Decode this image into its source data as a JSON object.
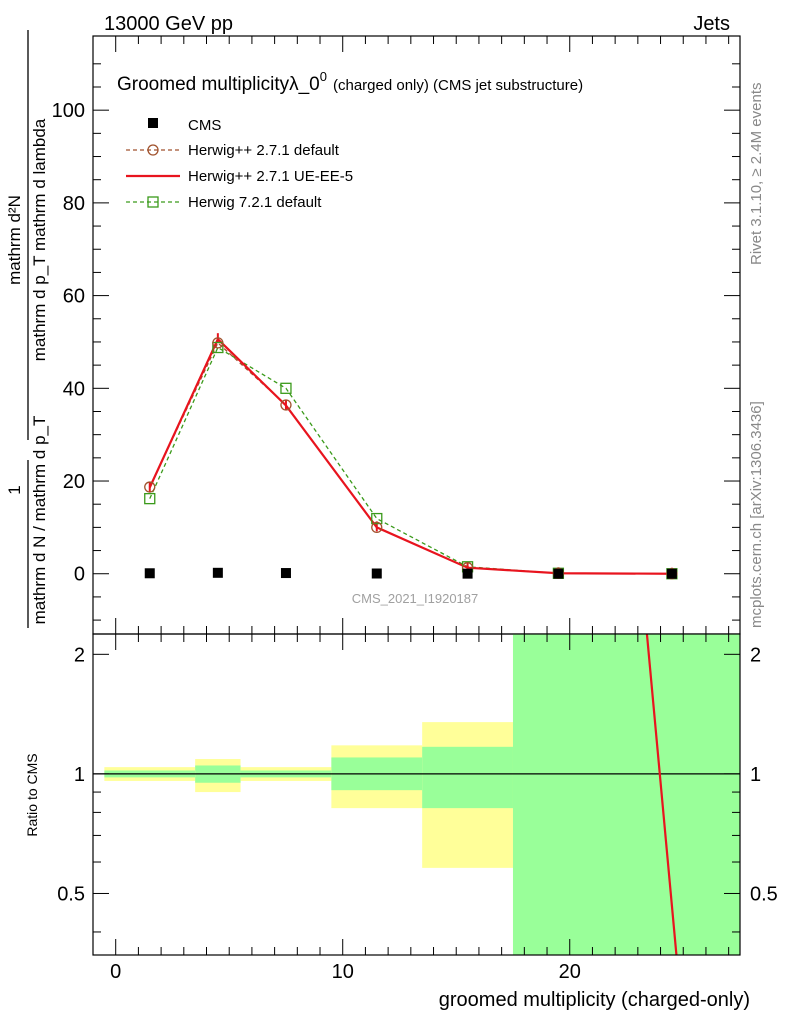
{
  "header": {
    "left": "13000 GeV pp",
    "right": "Jets"
  },
  "side_text": {
    "rivet": "Rivet 3.1.10, ≥ 2.4M events",
    "mcplots": "mcplots.cern.ch [arXiv:1306.3436]"
  },
  "chart_data": [
    {
      "type": "line",
      "title_main": "Groomed multiplicityλ_0",
      "title_sup": "0",
      "title_tail": "(charged only) (CMS jet substructure)",
      "watermark": "CMS_2021_I1920187",
      "ylabel_line1": "mathrm d²N",
      "ylabel_line2": "mathrm d p_T mathrm d lambda",
      "ylabel_prefix": "1",
      "ylabel_line3": "mathrm d N / mathrm d p_T",
      "xlim": [
        -1,
        27.5
      ],
      "ylim": [
        -13,
        116
      ],
      "yticks": [
        0,
        20,
        40,
        60,
        80,
        100
      ],
      "legend": [
        "CMS",
        "Herwig++ 2.7.1 default",
        "Herwig++ 2.7.1 UE-EE-5",
        "Herwig 7.2.1 default"
      ],
      "series": [
        {
          "name": "CMS",
          "x": [
            1.5,
            4.5,
            7.5,
            11.5,
            15.5,
            19.5,
            24.5
          ],
          "values": [
            0.1,
            0.2,
            0.15,
            0.05,
            0.02,
            0.01,
            0.0
          ],
          "color": "#000000"
        },
        {
          "name": "Herwig++ 2.7.1 default",
          "x": [
            1.5,
            4.5,
            7.5,
            11.5,
            15.5,
            19.5,
            24.5
          ],
          "values": [
            18.7,
            49.8,
            36.4,
            10.0,
            1.3,
            0.1,
            0.0
          ],
          "color": "#a0522d"
        },
        {
          "name": "Herwig++ 2.7.1 UE-EE-5",
          "x": [
            1.5,
            4.5,
            7.5,
            11.5,
            15.5,
            19.5,
            24.5
          ],
          "values": [
            18.6,
            50.6,
            36.3,
            10.0,
            1.3,
            0.1,
            0.0
          ],
          "color": "#e8141e"
        },
        {
          "name": "Herwig 7.2.1 default",
          "x": [
            1.5,
            4.5,
            7.5,
            11.5,
            15.5,
            19.5,
            24.5
          ],
          "values": [
            16.2,
            48.8,
            40.0,
            11.9,
            1.5,
            0.1,
            0.0
          ],
          "color": "#3a9a1a"
        }
      ]
    },
    {
      "type": "area",
      "ylabel": "Ratio to CMS",
      "xlabel": "groomed multiplicity (charged-only)",
      "xlim": [
        -1,
        27.5
      ],
      "ylim": [
        0.35,
        2.25
      ],
      "xticks": [
        0,
        10,
        20
      ],
      "yticks": [
        0.5,
        1,
        2
      ],
      "bands": [
        {
          "x0": -0.5,
          "x1": 3.5,
          "yellow": [
            0.96,
            1.04
          ],
          "green": [
            0.98,
            1.02
          ]
        },
        {
          "x0": 3.5,
          "x1": 5.5,
          "yellow": [
            0.9,
            1.09
          ],
          "green": [
            0.95,
            1.05
          ]
        },
        {
          "x0": 5.5,
          "x1": 9.5,
          "yellow": [
            0.96,
            1.04
          ],
          "green": [
            0.98,
            1.02
          ]
        },
        {
          "x0": 9.5,
          "x1": 13.5,
          "yellow": [
            0.82,
            1.18
          ],
          "green": [
            0.91,
            1.1
          ]
        },
        {
          "x0": 13.5,
          "x1": 17.5,
          "yellow": [
            0.58,
            1.35
          ],
          "green": [
            0.82,
            1.17
          ]
        },
        {
          "x0": 17.5,
          "x1": 27.5,
          "yellow": [
            0.35,
            2.25
          ],
          "green": [
            0.35,
            2.25
          ]
        }
      ],
      "ratio_line": {
        "name": "Herwig++ 2.7.1 UE-EE-5",
        "x": [
          23.4,
          24.7
        ],
        "values": [
          2.25,
          0.35
        ],
        "color": "#e8141e"
      }
    }
  ]
}
